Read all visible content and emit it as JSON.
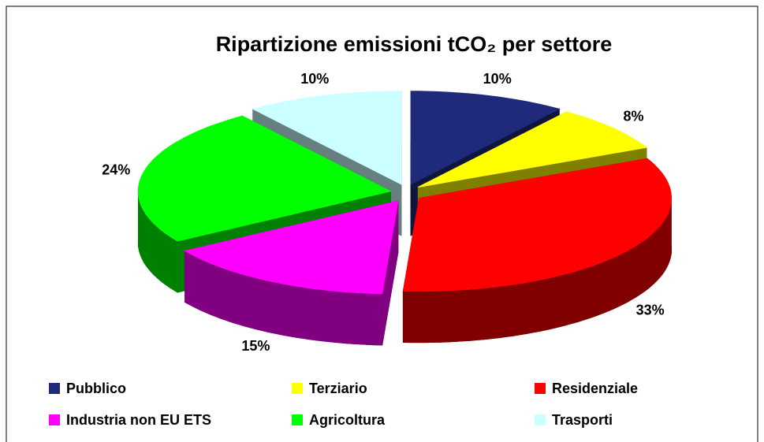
{
  "chart_data": {
    "type": "pie3d",
    "title": "Ripartizione emissioni tCO₂ per settore",
    "categories": [
      "Pubblico",
      "Terziario",
      "Residenziale",
      "Industria non EU ETS",
      "Agricoltura",
      "Trasporti"
    ],
    "values": [
      10,
      8,
      33,
      15,
      24,
      10
    ],
    "value_labels": [
      "10%",
      "8%",
      "33%",
      "15%",
      "24%",
      "10%"
    ],
    "colors": [
      "#1f2a7a",
      "#ffff00",
      "#ff0000",
      "#ff00ff",
      "#00ff00",
      "#ccffff"
    ]
  }
}
